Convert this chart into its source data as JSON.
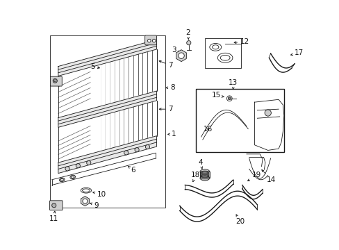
{
  "bg_color": "#ffffff",
  "line_color": "#1a1a1a",
  "label_color": "#111111",
  "fig_width": 4.89,
  "fig_height": 3.6,
  "dpi": 100
}
